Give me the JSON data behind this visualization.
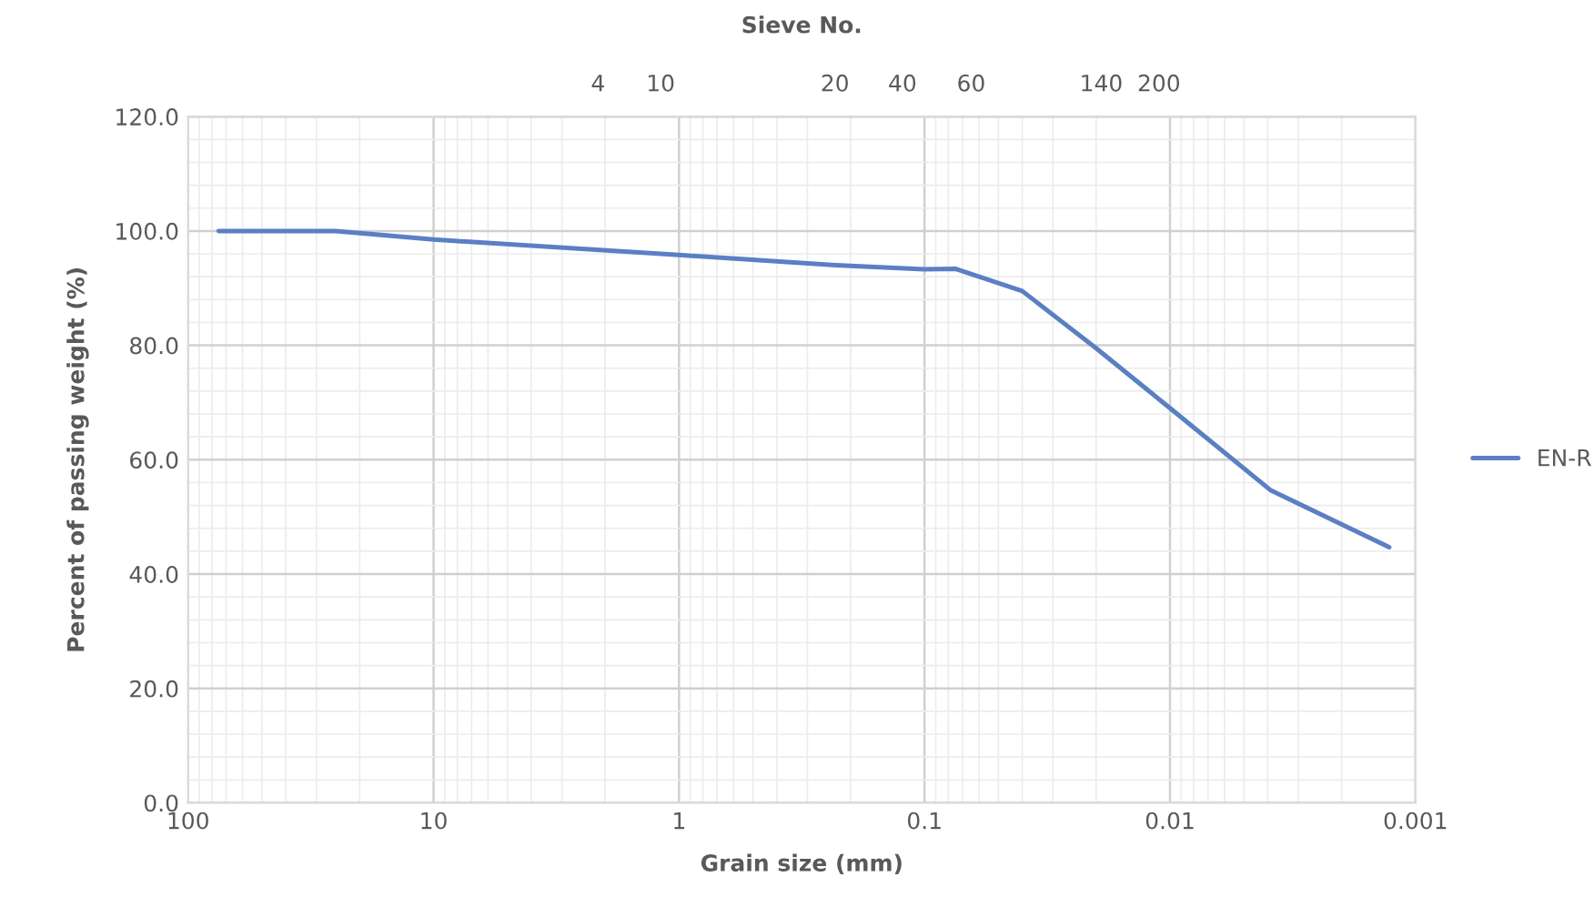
{
  "chart_data": {
    "type": "line",
    "xlabel": "Grain size (mm)",
    "ylabel": "Percent of passing weight (%)",
    "x2label": "Sieve No.",
    "log": "x",
    "xlim": [
      100,
      0.001
    ],
    "xticks": [
      100,
      10,
      1,
      0.1,
      0.01,
      0.001
    ],
    "annotations": [
      "4",
      "10",
      "20",
      "40",
      "60",
      "140",
      "200"
    ],
    "ylim": [
      0,
      120
    ],
    "yticks": [
      {
        "value": 0,
        "label": "0.0"
      },
      {
        "value": 20,
        "label": "20.0"
      },
      {
        "value": 40,
        "label": "40.0"
      },
      {
        "value": 60,
        "label": "60.0"
      },
      {
        "value": 80,
        "label": "80.0"
      },
      {
        "value": 100,
        "label": "100.0"
      },
      {
        "value": 120,
        "label": "120.0"
      }
    ],
    "grid": true,
    "legend": "right",
    "marker": "none",
    "line_style": "solid",
    "series": [
      {
        "name": "EN-R",
        "color": "#5b7fc4",
        "x": [
          75,
          25,
          10,
          1,
          0.23,
          0.1,
          0.075,
          0.04,
          0.02,
          0.0096,
          0.0039,
          0.00128
        ],
        "values": [
          100,
          100,
          98.5,
          95.8,
          94.0,
          93.3,
          93.4,
          89.5,
          79.5,
          68.4,
          54.7,
          44.7
        ]
      }
    ]
  }
}
